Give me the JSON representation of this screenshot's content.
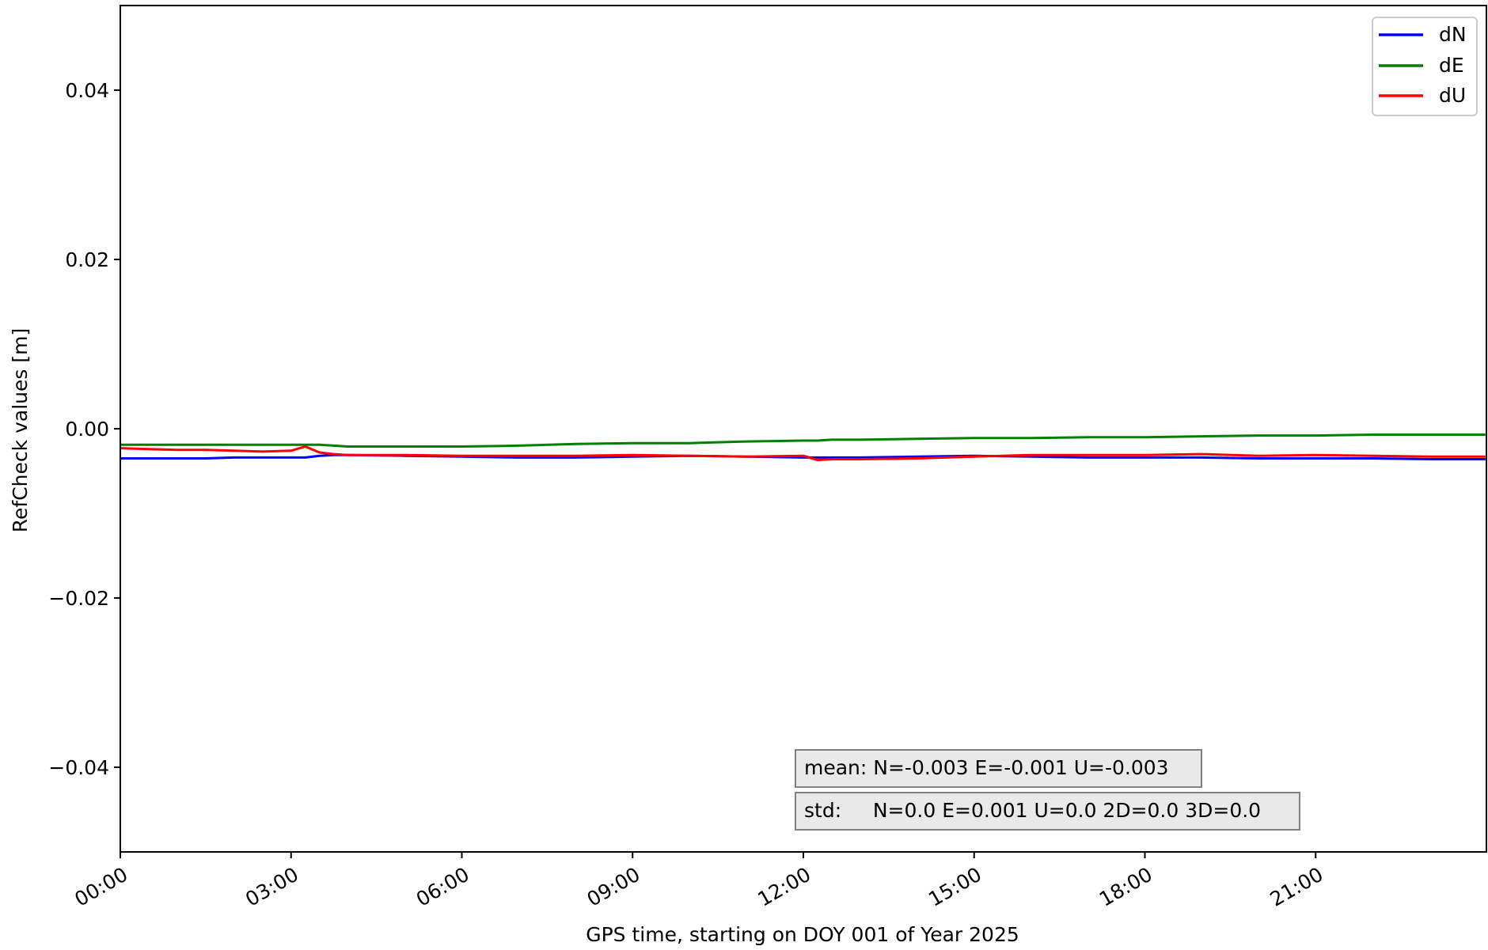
{
  "chart_data": {
    "type": "line",
    "title": "",
    "xlabel": "GPS time, starting on DOY 001 of Year 2025",
    "ylabel": "RefCheck values [m]",
    "xlim": [
      "00:00",
      "24:00"
    ],
    "ylim": [
      -0.05,
      0.05
    ],
    "xticks": [
      "00:00",
      "03:00",
      "06:00",
      "09:00",
      "12:00",
      "15:00",
      "18:00",
      "21:00"
    ],
    "yticks": [
      {
        "value": 0.04,
        "label": "0.04"
      },
      {
        "value": 0.02,
        "label": "0.02"
      },
      {
        "value": 0.0,
        "label": "0.00"
      },
      {
        "value": -0.02,
        "label": "−0.02"
      },
      {
        "value": -0.04,
        "label": "−0.04"
      }
    ],
    "grid": false,
    "legend": "top-right",
    "x": [
      "00:00",
      "00:30",
      "01:00",
      "01:30",
      "02:00",
      "02:30",
      "03:00",
      "03:15",
      "03:30",
      "03:45",
      "04:00",
      "05:00",
      "06:00",
      "07:00",
      "08:00",
      "09:00",
      "10:00",
      "11:00",
      "12:00",
      "12:15",
      "12:30",
      "13:00",
      "14:00",
      "15:00",
      "16:00",
      "17:00",
      "18:00",
      "19:00",
      "20:00",
      "21:00",
      "22:00",
      "23:00",
      "23:59"
    ],
    "series": [
      {
        "name": "dN",
        "color": "#0000ff",
        "values": [
          -0.0035,
          -0.0035,
          -0.0035,
          -0.0035,
          -0.0034,
          -0.0034,
          -0.0034,
          -0.0034,
          -0.0032,
          -0.0031,
          -0.0031,
          -0.0032,
          -0.0033,
          -0.0034,
          -0.0034,
          -0.0033,
          -0.0032,
          -0.0033,
          -0.0034,
          -0.0034,
          -0.0034,
          -0.0034,
          -0.0033,
          -0.0032,
          -0.0033,
          -0.0034,
          -0.0034,
          -0.0034,
          -0.0035,
          -0.0035,
          -0.0035,
          -0.0036,
          -0.0036
        ]
      },
      {
        "name": "dE",
        "color": "#008000",
        "values": [
          -0.0019,
          -0.0019,
          -0.0019,
          -0.0019,
          -0.0019,
          -0.0019,
          -0.0019,
          -0.0019,
          -0.0019,
          -0.002,
          -0.0021,
          -0.0021,
          -0.0021,
          -0.002,
          -0.0018,
          -0.0017,
          -0.0017,
          -0.0015,
          -0.0014,
          -0.0014,
          -0.0013,
          -0.0013,
          -0.0012,
          -0.0011,
          -0.0011,
          -0.001,
          -0.001,
          -0.0009,
          -0.0008,
          -0.0008,
          -0.0007,
          -0.0007,
          -0.0007
        ]
      },
      {
        "name": "dU",
        "color": "#ff0000",
        "values": [
          -0.0023,
          -0.0024,
          -0.0025,
          -0.0025,
          -0.0026,
          -0.0027,
          -0.0026,
          -0.0021,
          -0.0028,
          -0.003,
          -0.0031,
          -0.0031,
          -0.0032,
          -0.0032,
          -0.0032,
          -0.0031,
          -0.0032,
          -0.0033,
          -0.0032,
          -0.0037,
          -0.0036,
          -0.0036,
          -0.0035,
          -0.0033,
          -0.0031,
          -0.0031,
          -0.0031,
          -0.003,
          -0.0032,
          -0.0031,
          -0.0032,
          -0.0033,
          -0.0033
        ]
      }
    ],
    "annotations": [
      {
        "name": "mean",
        "text": "mean: N=-0.003 E=-0.001 U=-0.003"
      },
      {
        "name": "std",
        "text": "std:     N=0.0 E=0.001 U=0.0 2D=0.0 3D=0.0"
      }
    ]
  }
}
